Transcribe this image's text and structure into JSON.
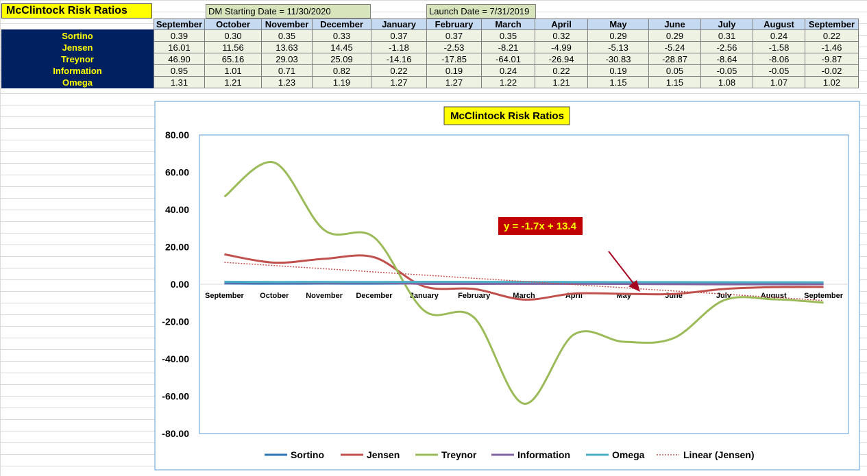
{
  "sheet": {
    "title": "McClintock Risk Ratios",
    "dm_start": "DM Starting Date = 11/30/2020",
    "launch": "Launch Date = 7/31/2019"
  },
  "chart_data": {
    "type": "line",
    "title": "McClintock Risk Ratios",
    "categories": [
      "September",
      "October",
      "November",
      "December",
      "January",
      "February",
      "March",
      "April",
      "May",
      "June",
      "July",
      "August",
      "September"
    ],
    "series": [
      {
        "name": "Sortino",
        "color": "#2e75b6",
        "values": [
          0.39,
          0.3,
          0.35,
          0.33,
          0.37,
          0.37,
          0.35,
          0.32,
          0.29,
          0.29,
          0.31,
          0.24,
          0.22
        ],
        "value_labels": [
          "0.39",
          "0.30",
          "0.35",
          "0.33",
          "0.37",
          "0.37",
          "0.35",
          "0.32",
          "0.29",
          "0.29",
          "0.31",
          "0.24",
          "0.22"
        ]
      },
      {
        "name": "Jensen",
        "color": "#c0504d",
        "values": [
          16.01,
          11.56,
          13.63,
          14.45,
          -1.18,
          -2.53,
          -8.21,
          -4.99,
          -5.13,
          -5.24,
          -2.56,
          -1.58,
          -1.46
        ],
        "value_labels": [
          "16.01",
          "11.56",
          "13.63",
          "14.45",
          "-1.18",
          "-2.53",
          "-8.21",
          "-4.99",
          "-5.13",
          "-5.24",
          "-2.56",
          "-1.58",
          "-1.46"
        ]
      },
      {
        "name": "Treynor",
        "color": "#9bbb59",
        "values": [
          46.9,
          65.16,
          29.03,
          25.09,
          -14.16,
          -17.85,
          -64.01,
          -26.94,
          -30.83,
          -28.87,
          -8.64,
          -8.06,
          -9.87
        ],
        "value_labels": [
          "46.90",
          "65.16",
          "29.03",
          "25.09",
          "-14.16",
          "-17.85",
          "-64.01",
          "-26.94",
          "-30.83",
          "-28.87",
          "-8.64",
          "-8.06",
          "-9.87"
        ]
      },
      {
        "name": "Information",
        "color": "#8064a2",
        "values": [
          0.95,
          1.01,
          0.71,
          0.82,
          0.22,
          0.19,
          0.24,
          0.22,
          0.19,
          0.05,
          -0.05,
          -0.05,
          -0.02
        ],
        "value_labels": [
          "0.95",
          "1.01",
          "0.71",
          "0.82",
          "0.22",
          "0.19",
          "0.24",
          "0.22",
          "0.19",
          "0.05",
          "-0.05",
          "-0.05",
          "-0.02"
        ]
      },
      {
        "name": "Omega",
        "color": "#4bacc6",
        "values": [
          1.31,
          1.21,
          1.23,
          1.19,
          1.27,
          1.27,
          1.22,
          1.21,
          1.15,
          1.15,
          1.08,
          1.07,
          1.02
        ],
        "value_labels": [
          "1.31",
          "1.21",
          "1.23",
          "1.19",
          "1.27",
          "1.27",
          "1.22",
          "1.21",
          "1.15",
          "1.15",
          "1.08",
          "1.07",
          "1.02"
        ]
      }
    ],
    "trendline": {
      "name": "Linear (Jensen)",
      "equation": "y = -1.7x + 13.4",
      "slope": -1.7,
      "intercept": 13.4,
      "color": "#c0504d"
    },
    "ylim": [
      -80,
      80
    ],
    "yticks": [
      {
        "value": -80,
        "label": "-80.00"
      },
      {
        "value": -60,
        "label": "-60.00"
      },
      {
        "value": -40,
        "label": "-40.00"
      },
      {
        "value": -20,
        "label": "-20.00"
      },
      {
        "value": 0,
        "label": "0.00"
      },
      {
        "value": 20,
        "label": "20.00"
      },
      {
        "value": 40,
        "label": "40.00"
      },
      {
        "value": 60,
        "label": "60.00"
      },
      {
        "value": 80,
        "label": "80.00"
      }
    ],
    "grid": false
  }
}
